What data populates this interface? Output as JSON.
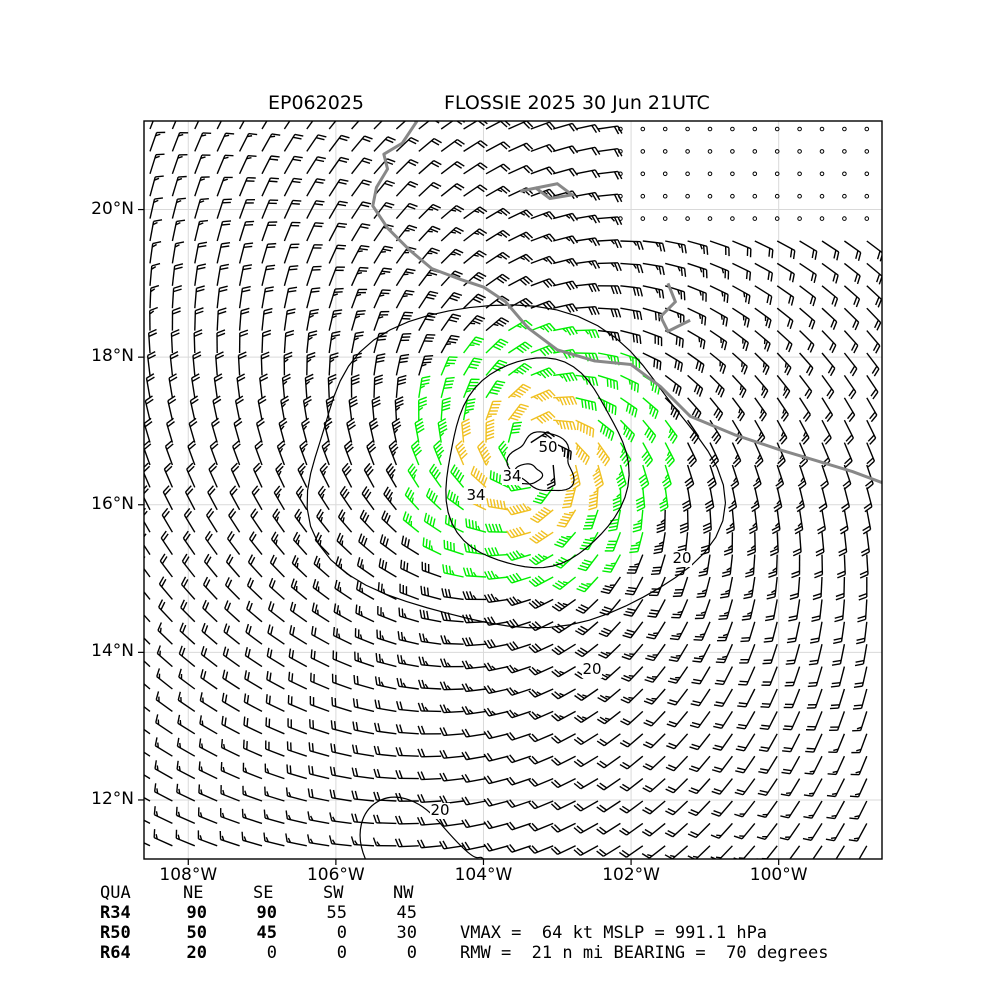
{
  "title": {
    "storm_id": "EP062025",
    "main": "FLOSSIE 2025 30 Jun 21UTC"
  },
  "map": {
    "lon_range": [
      -108.6,
      -98.6
    ],
    "lat_range": [
      11.2,
      21.2
    ],
    "x_ticks": [
      "108°W",
      "106°W",
      "104°W",
      "102°W",
      "100°W"
    ],
    "y_ticks": [
      "12°N",
      "14°N",
      "16°N",
      "18°N",
      "20°N"
    ],
    "storm_center": {
      "lon": -103.3,
      "lat": 16.6
    },
    "contour_labels": [
      "50",
      "34",
      "34",
      "20",
      "20",
      "20"
    ],
    "colors": {
      "coast": "#888888",
      "grid": "#d9d9d9",
      "barb_default": "#000000",
      "barb_34": "#00ee00",
      "barb_50": "#f0c020",
      "barb_64": "#ff6a00"
    }
  },
  "wind_radii": {
    "headers": [
      "QUA",
      "NE",
      "SE",
      "SW",
      "NW"
    ],
    "rows": [
      {
        "label": "R34",
        "values": [
          "90",
          "90",
          "55",
          "45"
        ]
      },
      {
        "label": "R50",
        "values": [
          "50",
          "45",
          "0",
          "30"
        ]
      },
      {
        "label": "R64",
        "values": [
          "20",
          "0",
          "0",
          "0"
        ]
      }
    ]
  },
  "info": {
    "line1": "VMAX =  64 kt MSLP = 991.1 hPa",
    "line2": "RMW =  21 n mi BEARING =  70 degrees"
  }
}
